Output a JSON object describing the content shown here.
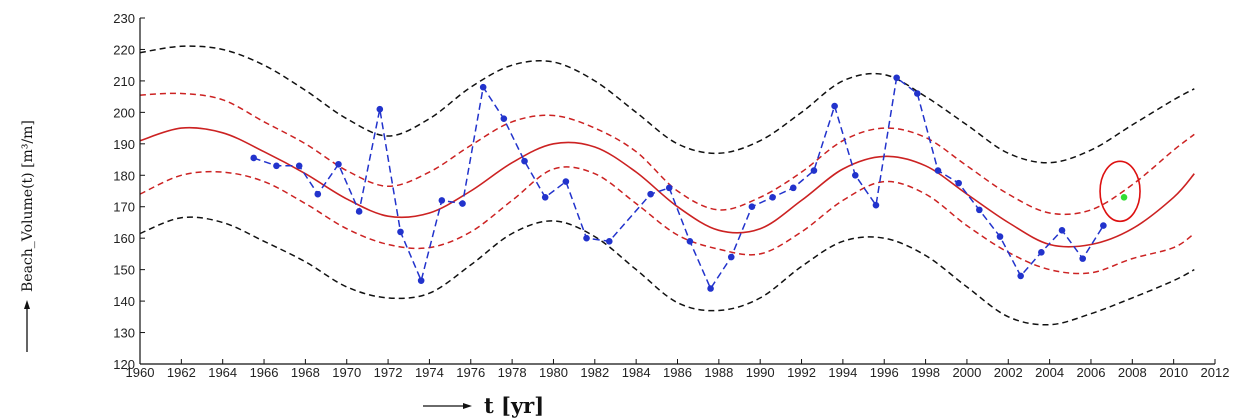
{
  "chart_data": {
    "type": "line",
    "xlabel": "t [yr]",
    "ylabel": "Beach_Volume(t) [m³/m]",
    "xlim": [
      1960,
      2012
    ],
    "ylim": [
      120,
      230
    ],
    "grid": false,
    "x_ticks": [
      1960,
      1962,
      1964,
      1966,
      1968,
      1970,
      1972,
      1974,
      1976,
      1978,
      1980,
      1982,
      1984,
      1986,
      1988,
      1990,
      1992,
      1994,
      1996,
      1998,
      2000,
      2002,
      2004,
      2006,
      2008,
      2010,
      2012
    ],
    "y_ticks": [
      120,
      130,
      140,
      150,
      160,
      170,
      180,
      190,
      200,
      210,
      220,
      230
    ],
    "curve_x": [
      1960,
      1962,
      1964,
      1966,
      1968,
      1970,
      1972,
      1974,
      1976,
      1978,
      1980,
      1982,
      1984,
      1986,
      1988,
      1990,
      1992,
      1994,
      1996,
      1998,
      2000,
      2002,
      2004,
      2006,
      2008,
      2010,
      2011
    ],
    "series": [
      {
        "role": "fit",
        "style": "solid",
        "color": "#cc2222",
        "y": [
          191,
          195,
          193.5,
          187.5,
          180.5,
          172.5,
          167,
          168,
          175,
          184,
          190,
          189,
          181,
          170,
          162.5,
          163,
          172,
          182,
          186,
          183,
          174,
          165,
          158,
          158,
          163,
          173,
          180.5
        ]
      },
      {
        "role": "inner-upper",
        "style": "dashed",
        "color": "#cc2222",
        "y": [
          205.5,
          206,
          204,
          197,
          190,
          181.5,
          176.5,
          181,
          189.5,
          197,
          199,
          195,
          187.5,
          175,
          169,
          173,
          181,
          191,
          195,
          192,
          183,
          174,
          168,
          169,
          177,
          188,
          193
        ]
      },
      {
        "role": "inner-lower",
        "style": "dashed",
        "color": "#cc2222",
        "y": [
          174,
          180,
          181,
          178,
          171,
          163,
          158,
          157,
          162,
          172,
          182,
          180.5,
          171,
          161,
          156.5,
          155,
          162,
          172,
          178,
          174,
          164,
          155.5,
          150,
          149,
          153.5,
          157,
          161.5
        ]
      },
      {
        "role": "outer-upper",
        "style": "dashed",
        "color": "#111111",
        "y": [
          219,
          221,
          220,
          215,
          207,
          198,
          192.5,
          198,
          208,
          215,
          216,
          210,
          200,
          190,
          187,
          191,
          200,
          210,
          212,
          205,
          196,
          187,
          184,
          188,
          196,
          204,
          207.5
        ]
      },
      {
        "role": "outer-lower",
        "style": "dashed",
        "color": "#111111",
        "y": [
          161.5,
          166.5,
          165,
          159,
          152.5,
          144.5,
          141,
          142.5,
          151.5,
          161.5,
          165.5,
          160.5,
          150,
          139.5,
          137,
          141,
          151,
          159,
          160,
          154.5,
          144.5,
          135,
          132.5,
          136,
          141,
          146.5,
          150
        ]
      },
      {
        "role": "observations",
        "style": "dashed-markers",
        "color": "#2233cc",
        "x": [
          1965.5,
          1966.6,
          1967.7,
          1968.6,
          1969.6,
          1970.6,
          1971.6,
          1972.6,
          1973.6,
          1974.6,
          1975.6,
          1976.6,
          1977.6,
          1978.6,
          1979.6,
          1980.6,
          1981.6,
          1982.7,
          1984.7,
          1985.6,
          1986.6,
          1987.6,
          1988.6,
          1989.6,
          1990.6,
          1991.6,
          1992.6,
          1993.6,
          1994.6,
          1995.6,
          1996.6,
          1997.6,
          1998.6,
          1999.6,
          2000.6,
          2001.6,
          2002.6,
          2003.6,
          2004.6,
          2005.6,
          2006.6
        ],
        "y": [
          185.5,
          183,
          183,
          174,
          183.5,
          168.5,
          201,
          162,
          146.5,
          172,
          171,
          208,
          198,
          184.5,
          173,
          178,
          160,
          159,
          174,
          176,
          159,
          144,
          154,
          170,
          173,
          176,
          181.5,
          202,
          180,
          170.5,
          211,
          206,
          181.5,
          177.5,
          169,
          160.5,
          148,
          155.5,
          162.5,
          153.5,
          164
        ]
      }
    ],
    "highlight_point": {
      "x": 2007.6,
      "y": 173,
      "color": "#33dd33",
      "circle_color": "#dd1111"
    }
  }
}
